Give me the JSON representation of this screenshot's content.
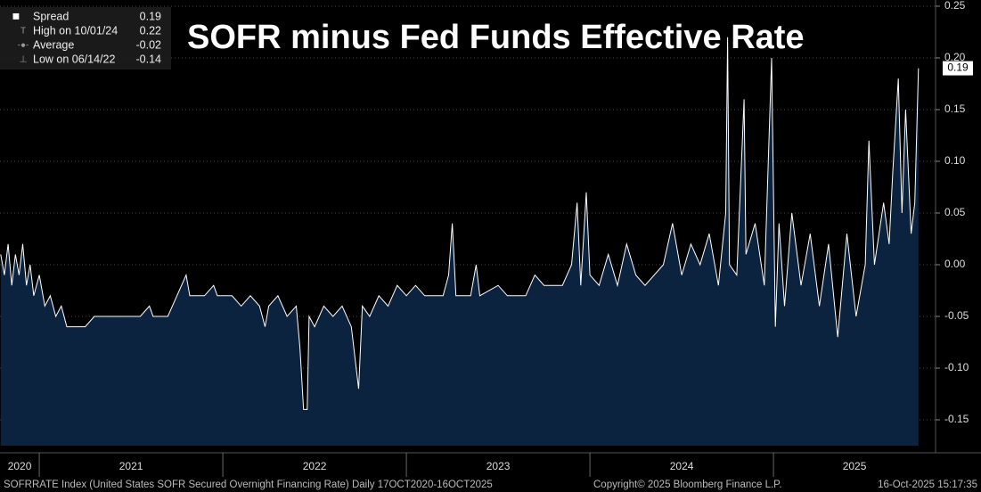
{
  "chart_data": {
    "type": "area",
    "title": "SOFR minus Fed Funds Effective Rate",
    "series": [
      {
        "name": "Spread",
        "color": "#ffffff",
        "fill": "#0c2340",
        "x": [
          2020.79,
          2020.81,
          2020.83,
          2020.85,
          2020.87,
          2020.89,
          2020.91,
          2020.93,
          2020.95,
          2020.97,
          2021.0,
          2021.03,
          2021.06,
          2021.09,
          2021.12,
          2021.15,
          2021.25,
          2021.3,
          2021.45,
          2021.55,
          2021.6,
          2021.62,
          2021.7,
          2021.75,
          2021.8,
          2021.82,
          2021.9,
          2021.95,
          2021.97,
          2022.05,
          2022.1,
          2022.15,
          2022.2,
          2022.23,
          2022.25,
          2022.3,
          2022.35,
          2022.4,
          2022.42,
          2022.44,
          2022.46,
          2022.47,
          2022.5,
          2022.55,
          2022.6,
          2022.65,
          2022.7,
          2022.72,
          2022.74,
          2022.76,
          2022.8,
          2022.85,
          2022.9,
          2022.95,
          2023.0,
          2023.05,
          2023.1,
          2023.2,
          2023.23,
          2023.25,
          2023.27,
          2023.35,
          2023.38,
          2023.4,
          2023.5,
          2023.55,
          2023.65,
          2023.7,
          2023.75,
          2023.85,
          2023.9,
          2023.93,
          2023.95,
          2023.98,
          2024.0,
          2024.05,
          2024.1,
          2024.15,
          2024.2,
          2024.25,
          2024.3,
          2024.4,
          2024.45,
          2024.5,
          2024.55,
          2024.6,
          2024.65,
          2024.7,
          2024.74,
          2024.75,
          2024.76,
          2024.8,
          2024.84,
          2024.85,
          2024.9,
          2024.95,
          2024.99,
          2025.01,
          2025.03,
          2025.06,
          2025.1,
          2025.15,
          2025.2,
          2025.25,
          2025.3,
          2025.35,
          2025.4,
          2025.45,
          2025.5,
          2025.52,
          2025.55,
          2025.6,
          2025.63,
          2025.65,
          2025.68,
          2025.7,
          2025.72,
          2025.75,
          2025.77,
          2025.79
        ],
        "values": [
          0.01,
          -0.01,
          0.02,
          -0.02,
          0.01,
          -0.01,
          0.02,
          -0.02,
          0.0,
          -0.03,
          -0.01,
          -0.04,
          -0.03,
          -0.05,
          -0.04,
          -0.06,
          -0.06,
          -0.05,
          -0.05,
          -0.05,
          -0.04,
          -0.05,
          -0.05,
          -0.03,
          -0.01,
          -0.03,
          -0.03,
          -0.02,
          -0.03,
          -0.03,
          -0.04,
          -0.03,
          -0.04,
          -0.06,
          -0.04,
          -0.03,
          -0.05,
          -0.04,
          -0.08,
          -0.14,
          -0.14,
          -0.05,
          -0.06,
          -0.04,
          -0.05,
          -0.04,
          -0.06,
          -0.09,
          -0.12,
          -0.04,
          -0.05,
          -0.03,
          -0.04,
          -0.02,
          -0.03,
          -0.02,
          -0.03,
          -0.03,
          -0.01,
          0.04,
          -0.03,
          -0.03,
          0.0,
          -0.03,
          -0.02,
          -0.03,
          -0.03,
          -0.01,
          -0.02,
          -0.02,
          0.0,
          0.06,
          -0.02,
          0.07,
          -0.01,
          -0.02,
          0.01,
          -0.02,
          0.02,
          -0.01,
          -0.02,
          0.0,
          0.04,
          -0.01,
          0.02,
          0.0,
          0.03,
          -0.02,
          0.05,
          0.22,
          0.0,
          -0.01,
          0.16,
          0.01,
          0.04,
          -0.02,
          0.2,
          -0.06,
          0.04,
          -0.04,
          0.05,
          -0.02,
          0.03,
          -0.04,
          0.02,
          -0.07,
          0.03,
          -0.05,
          0.0,
          0.12,
          0.0,
          0.06,
          0.02,
          0.09,
          0.18,
          0.05,
          0.15,
          0.03,
          0.06,
          0.19
        ]
      }
    ],
    "legend": [
      {
        "label": "Spread",
        "value": 0.19
      },
      {
        "label": "High on 10/01/24",
        "value": 0.22
      },
      {
        "label": "Average",
        "value": -0.02
      },
      {
        "label": "Low on 06/14/22",
        "value": -0.14
      }
    ],
    "last_value_label": "0.19",
    "xlim": [
      2020.786,
      2025.883
    ],
    "xticks": [
      2020,
      2021,
      2022,
      2023,
      2024,
      2025
    ],
    "ylim": [
      -0.175,
      0.256
    ],
    "yticks": [
      {
        "value": -0.15,
        "label": "-0.15"
      },
      {
        "value": -0.1,
        "label": "-0.10"
      },
      {
        "value": -0.05,
        "label": "-0.05"
      },
      {
        "value": 0,
        "label": "0.00"
      },
      {
        "value": 0.05,
        "label": "0.05"
      },
      {
        "value": 0.1,
        "label": "0.10"
      },
      {
        "value": 0.15,
        "label": "0.15"
      },
      {
        "value": 0.2,
        "label": "0.20"
      },
      {
        "value": 0.25,
        "label": "0.25"
      }
    ],
    "grid": true,
    "footer": {
      "source": "SOFRRATE Index (United States SOFR Secured Overnight Financing Rate) Daily 17OCT2020-16OCT2025",
      "copyright": "Copyright© 2025 Bloomberg Finance L.P.",
      "timestamp": "16-Oct-2025 15:17:35"
    }
  }
}
